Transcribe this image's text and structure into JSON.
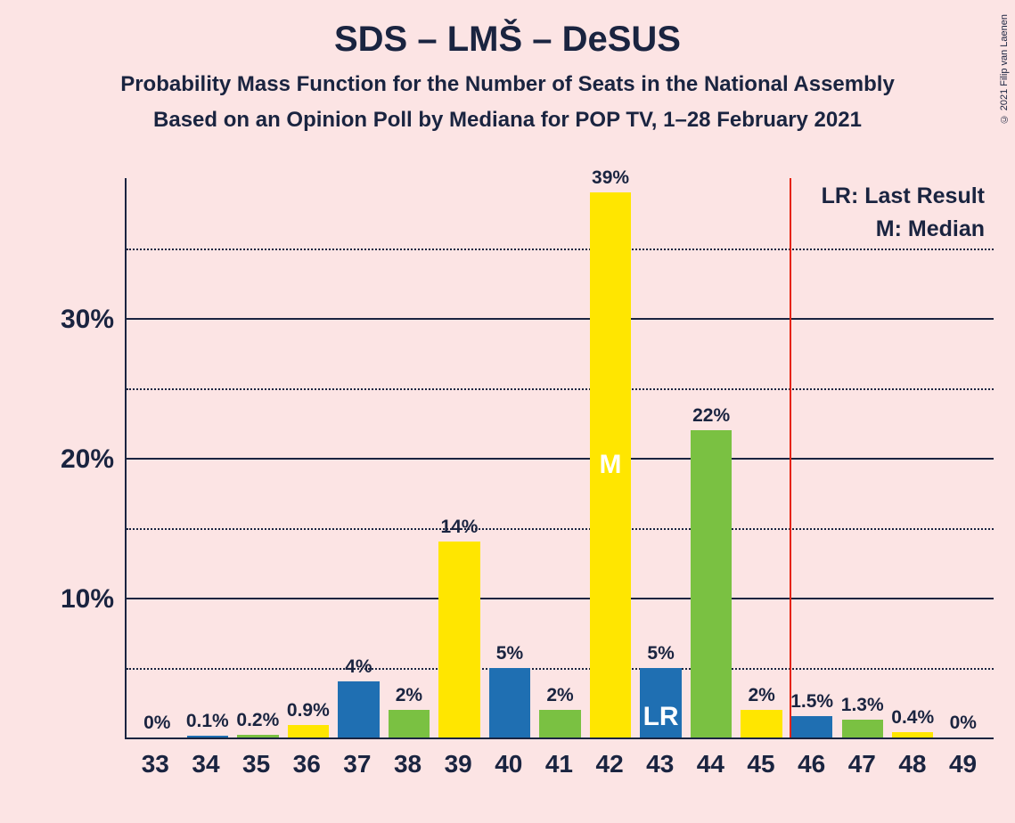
{
  "title": "SDS – LMŠ – DeSUS",
  "subtitle1": "Probability Mass Function for the Number of Seats in the National Assembly",
  "subtitle2": "Based on an Opinion Poll by Mediana for POP TV, 1–28 February 2021",
  "copyright": "© 2021 Filip van Laenen",
  "legend": {
    "lr": "LR: Last Result",
    "m": "M: Median"
  },
  "chart": {
    "type": "bar",
    "background_color": "#fce4e4",
    "text_color": "#1a2440",
    "title_fontsize": 40,
    "subtitle_fontsize": 24,
    "axis_label_fontsize": 30,
    "bar_label_fontsize": 21,
    "xtick_fontsize": 28,
    "ylim": [
      0,
      40
    ],
    "y_major_ticks": [
      10,
      20,
      30
    ],
    "y_minor_ticks": [
      5,
      15,
      25,
      35
    ],
    "grid_major_color": "#1a2440",
    "grid_minor_style": "dotted",
    "vline_x": 45.5,
    "vline_color": "#e52207",
    "colors": {
      "blue": "#1f6fb2",
      "green": "#7ac142",
      "yellow": "#ffe600"
    },
    "categories": [
      "33",
      "34",
      "35",
      "36",
      "37",
      "38",
      "39",
      "40",
      "41",
      "42",
      "43",
      "44",
      "45",
      "46",
      "47",
      "48",
      "49"
    ],
    "bars": [
      {
        "x": "33",
        "value": 0,
        "label": "0%",
        "color": "yellow"
      },
      {
        "x": "34",
        "value": 0.1,
        "label": "0.1%",
        "color": "blue"
      },
      {
        "x": "35",
        "value": 0.2,
        "label": "0.2%",
        "color": "green"
      },
      {
        "x": "36",
        "value": 0.9,
        "label": "0.9%",
        "color": "yellow"
      },
      {
        "x": "37",
        "value": 4,
        "label": "4%",
        "color": "blue"
      },
      {
        "x": "38",
        "value": 2,
        "label": "2%",
        "color": "green"
      },
      {
        "x": "39",
        "value": 14,
        "label": "14%",
        "color": "yellow"
      },
      {
        "x": "40",
        "value": 5,
        "label": "5%",
        "color": "blue"
      },
      {
        "x": "41",
        "value": 2,
        "label": "2%",
        "color": "green"
      },
      {
        "x": "42",
        "value": 39,
        "label": "39%",
        "color": "yellow",
        "inner_label": "M"
      },
      {
        "x": "43",
        "value": 5,
        "label": "5%",
        "color": "blue",
        "inner_label": "LR"
      },
      {
        "x": "44",
        "value": 22,
        "label": "22%",
        "color": "green"
      },
      {
        "x": "45",
        "value": 2,
        "label": "2%",
        "color": "yellow"
      },
      {
        "x": "46",
        "value": 1.5,
        "label": "1.5%",
        "color": "blue"
      },
      {
        "x": "47",
        "value": 1.3,
        "label": "1.3%",
        "color": "green"
      },
      {
        "x": "48",
        "value": 0.4,
        "label": "0.4%",
        "color": "yellow"
      },
      {
        "x": "49",
        "value": 0,
        "label": "0%",
        "color": "blue"
      }
    ]
  }
}
